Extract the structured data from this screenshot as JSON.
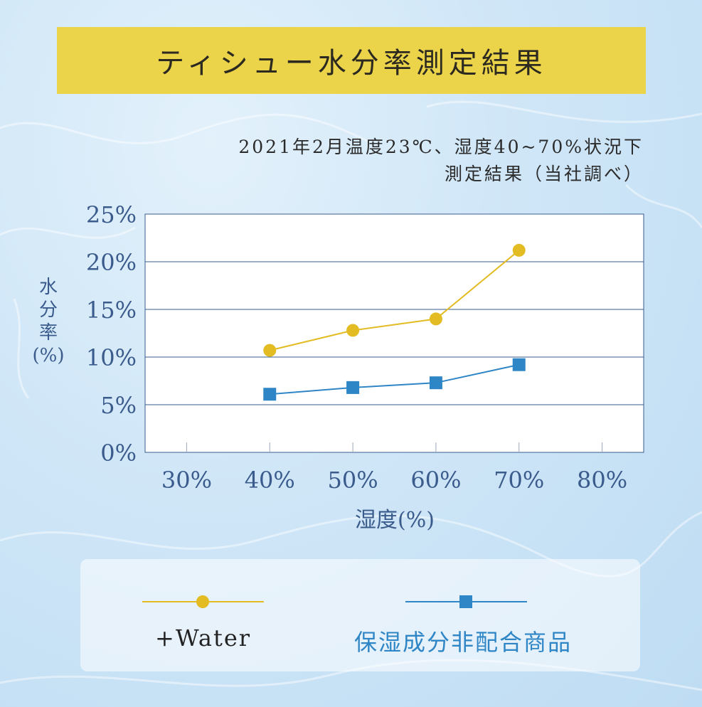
{
  "title": "ティシュー水分率測定結果",
  "subtitle_line1": "2021年2月温度23℃、湿度40~70%状況下",
  "subtitle_line2": "測定結果（当社調べ）",
  "colors": {
    "water": "#e3bb22",
    "normal": "#2f86c6",
    "axis_text": "#3a5b8c",
    "title_bg": "#ecd44a"
  },
  "chart_data": {
    "type": "line",
    "ylabel_chars": [
      "水",
      "分",
      "率",
      "(%)"
    ],
    "xlabel": "湿度(%)",
    "x_ticks": [
      30,
      40,
      50,
      60,
      70,
      80
    ],
    "x_tick_labels": [
      "30%",
      "40%",
      "50%",
      "60%",
      "70%",
      "80%"
    ],
    "y_ticks": [
      0,
      5,
      10,
      15,
      20,
      25
    ],
    "y_tick_labels": [
      "0%",
      "5%",
      "10%",
      "15%",
      "20%",
      "25%"
    ],
    "xlim": [
      25,
      85
    ],
    "ylim": [
      0,
      25
    ],
    "grid": "horizontal",
    "series": [
      {
        "name": "+Water",
        "marker": "circle",
        "color": "#e3bb22",
        "x": [
          40,
          50,
          60,
          70
        ],
        "y": [
          10.7,
          12.8,
          14.0,
          21.2
        ]
      },
      {
        "name": "保湿成分非配合商品",
        "marker": "square",
        "color": "#2f86c6",
        "x": [
          40,
          50,
          60,
          70
        ],
        "y": [
          6.1,
          6.8,
          7.3,
          9.2
        ]
      }
    ]
  }
}
